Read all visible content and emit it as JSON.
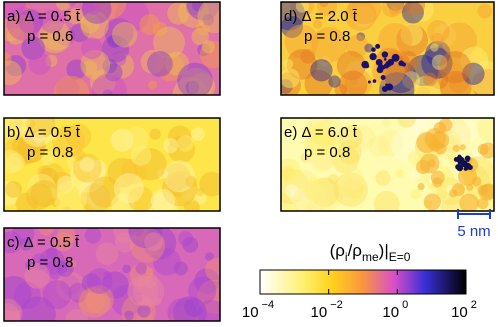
{
  "chart_data": {
    "type": "heatmap",
    "panels": [
      {
        "label": "a) Δ = 0.5 t̄",
        "p": "p = 0.6"
      },
      {
        "label": "b) Δ = 0.5 t̄",
        "p": "p = 0.8"
      },
      {
        "label": "c) Δ = 0.5 t̄",
        "p": "p = 0.8"
      },
      {
        "label": "d) Δ = 2.0 t̄",
        "p": "p = 0.8"
      },
      {
        "label": "e) Δ = 6.0 t̄",
        "p": "p = 0.8"
      }
    ],
    "scalebar": "5 nm",
    "colorbar": {
      "title": [
        "(ρ",
        "i",
        "/ρ",
        "me",
        ")|",
        "E=0"
      ],
      "log": true,
      "xlim": [
        0.0001,
        100
      ],
      "xticks": [
        {
          "value": 0.0001,
          "label": "10",
          "exponent": "−4"
        },
        {
          "value": 0.01,
          "label": "10",
          "exponent": "−2"
        },
        {
          "value": 1,
          "label": "10",
          "exponent": "0"
        },
        {
          "value": 100,
          "label": "10",
          "exponent": "2"
        }
      ]
    }
  }
}
